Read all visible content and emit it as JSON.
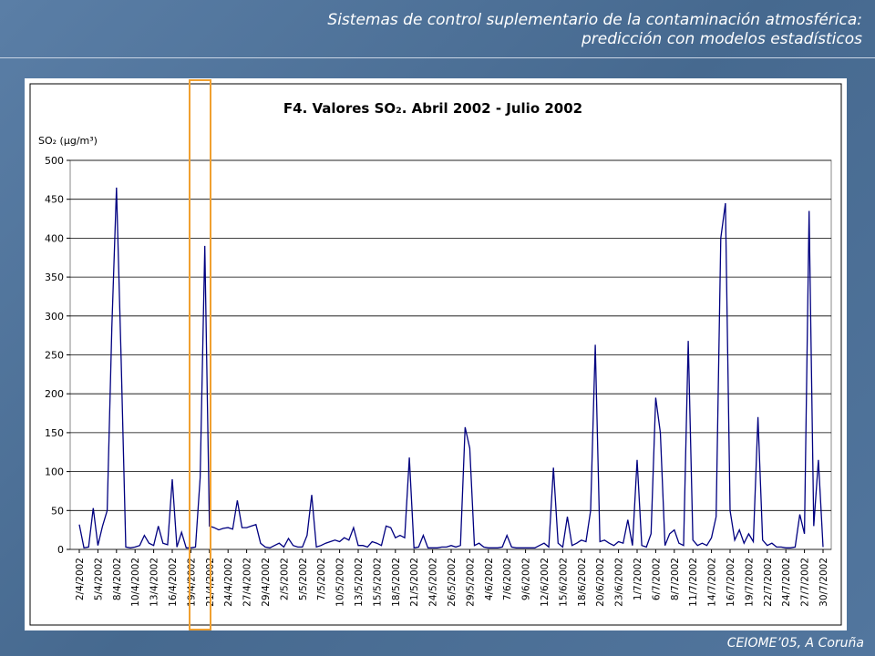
{
  "header": {
    "title": "Sistemas de control suplementario de la contaminación atmosférica:",
    "subtitle": "predicción con modelos estadísticos"
  },
  "footer": "CEIOME’05, A Coruña",
  "chart_data": {
    "type": "line",
    "title": "F4. Valores SO₂. Abril 2002 - Julio 2002",
    "y_label": "SO₂ (μg/m³)",
    "color": "#000080",
    "grid": true,
    "ylim": [
      0,
      500
    ],
    "yticks": [
      0,
      50,
      100,
      150,
      200,
      250,
      300,
      350,
      400,
      450,
      500
    ],
    "categories": [
      "2/4/2002",
      null,
      null,
      null,
      "5/4/2002",
      null,
      null,
      null,
      "8/4/2002",
      null,
      null,
      null,
      "10/4/2002",
      null,
      null,
      null,
      "13/4/2002",
      null,
      null,
      null,
      "16/4/2002",
      null,
      null,
      null,
      "19/4/2002",
      null,
      null,
      null,
      "21/4/2002",
      null,
      null,
      null,
      "24/4/2002",
      null,
      null,
      null,
      "27/4/2002",
      null,
      null,
      null,
      "29/4/2002",
      null,
      null,
      null,
      "2/5/2002",
      null,
      null,
      null,
      "5/5/2002",
      null,
      null,
      null,
      "7/5/2002",
      null,
      null,
      null,
      "10/5/2002",
      null,
      null,
      null,
      "13/5/2002",
      null,
      null,
      null,
      "15/5/2002",
      null,
      null,
      null,
      "18/5/2002",
      null,
      null,
      null,
      "21/5/2002",
      null,
      null,
      null,
      "24/5/2002",
      null,
      null,
      null,
      "26/5/2002",
      null,
      null,
      null,
      "29/5/2002",
      null,
      null,
      null,
      "4/6/2002",
      null,
      null,
      null,
      "7/6/2002",
      null,
      null,
      null,
      "9/6/2002",
      null,
      null,
      null,
      "12/6/2002",
      null,
      null,
      null,
      "15/6/2002",
      null,
      null,
      null,
      "18/6/2002",
      null,
      null,
      null,
      "20/6/2002",
      null,
      null,
      null,
      "23/6/2002",
      null,
      null,
      null,
      "1/7/2002",
      null,
      null,
      null,
      "6/7/2002",
      null,
      null,
      null,
      "8/7/2002",
      null,
      null,
      null,
      "11/7/2002",
      null,
      null,
      null,
      "14/7/2002",
      null,
      null,
      null,
      "16/7/2002",
      null,
      null,
      null,
      "19/7/2002",
      null,
      null,
      null,
      "22/7/2002",
      null,
      null,
      null,
      "24/7/2002",
      null,
      null,
      null,
      "27/7/2002",
      null,
      null,
      null,
      "30/7/2002"
    ],
    "values": [
      32,
      2,
      3,
      53,
      5,
      30,
      50,
      285,
      465,
      245,
      3,
      2,
      3,
      5,
      18,
      8,
      5,
      30,
      8,
      6,
      90,
      3,
      22,
      2,
      2,
      3,
      92,
      390,
      30,
      28,
      25,
      27,
      28,
      26,
      63,
      28,
      28,
      30,
      32,
      8,
      3,
      2,
      5,
      8,
      3,
      14,
      5,
      3,
      3,
      18,
      70,
      3,
      5,
      8,
      10,
      12,
      10,
      15,
      12,
      28,
      5,
      5,
      3,
      10,
      8,
      5,
      30,
      28,
      15,
      18,
      15,
      118,
      2,
      3,
      18,
      2,
      2,
      2,
      3,
      3,
      5,
      3,
      5,
      157,
      130,
      5,
      8,
      3,
      2,
      2,
      2,
      3,
      18,
      3,
      2,
      2,
      2,
      2,
      2,
      5,
      8,
      3,
      105,
      8,
      3,
      42,
      5,
      8,
      12,
      10,
      50,
      263,
      10,
      12,
      8,
      5,
      10,
      8,
      38,
      5,
      115,
      5,
      3,
      20,
      195,
      150,
      5,
      20,
      25,
      8,
      5,
      268,
      12,
      5,
      8,
      5,
      15,
      42,
      400,
      445,
      50,
      12,
      25,
      8,
      20,
      10,
      170,
      12,
      5,
      8,
      3,
      3,
      2,
      2,
      3,
      45,
      20,
      435,
      30,
      115,
      3
    ]
  }
}
